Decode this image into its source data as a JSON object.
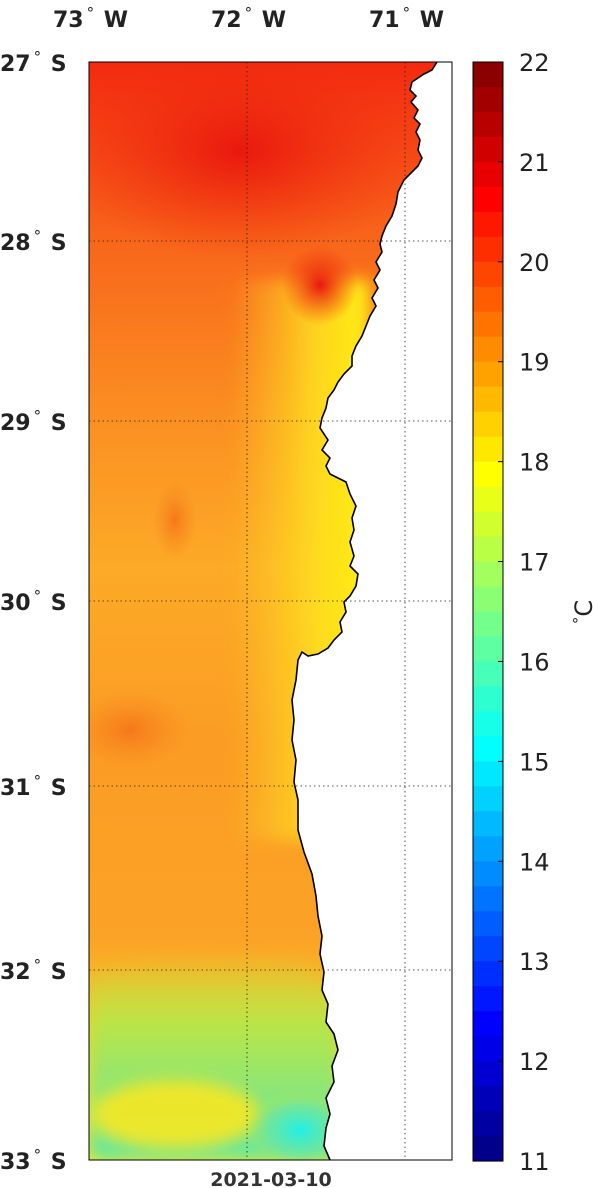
{
  "map": {
    "date": "2021-03-10",
    "lon_labels": [
      {
        "deg": "73",
        "hemi": "W"
      },
      {
        "deg": "72",
        "hemi": "W"
      },
      {
        "deg": "71",
        "hemi": "W"
      }
    ],
    "lat_labels": [
      {
        "deg": "27",
        "hemi": "S"
      },
      {
        "deg": "28",
        "hemi": "S"
      },
      {
        "deg": "29",
        "hemi": "S"
      },
      {
        "deg": "30",
        "hemi": "S"
      },
      {
        "deg": "31",
        "hemi": "S"
      },
      {
        "deg": "32",
        "hemi": "S"
      },
      {
        "deg": "33",
        "hemi": "S"
      }
    ],
    "lon_range": [
      -73,
      -70.7
    ],
    "lat_range": [
      -33,
      -27
    ],
    "degree_symbol": "°",
    "land_color": "#ffffff",
    "coast_color": "#000000",
    "grid": "dotted"
  },
  "colorbar": {
    "unit": "C",
    "degree_symbol": "°",
    "min": 11,
    "max": 22,
    "ticks": [
      "22",
      "21",
      "20",
      "19",
      "18",
      "17",
      "16",
      "15",
      "14",
      "13",
      "12",
      "11"
    ],
    "colormap": "jet"
  }
}
